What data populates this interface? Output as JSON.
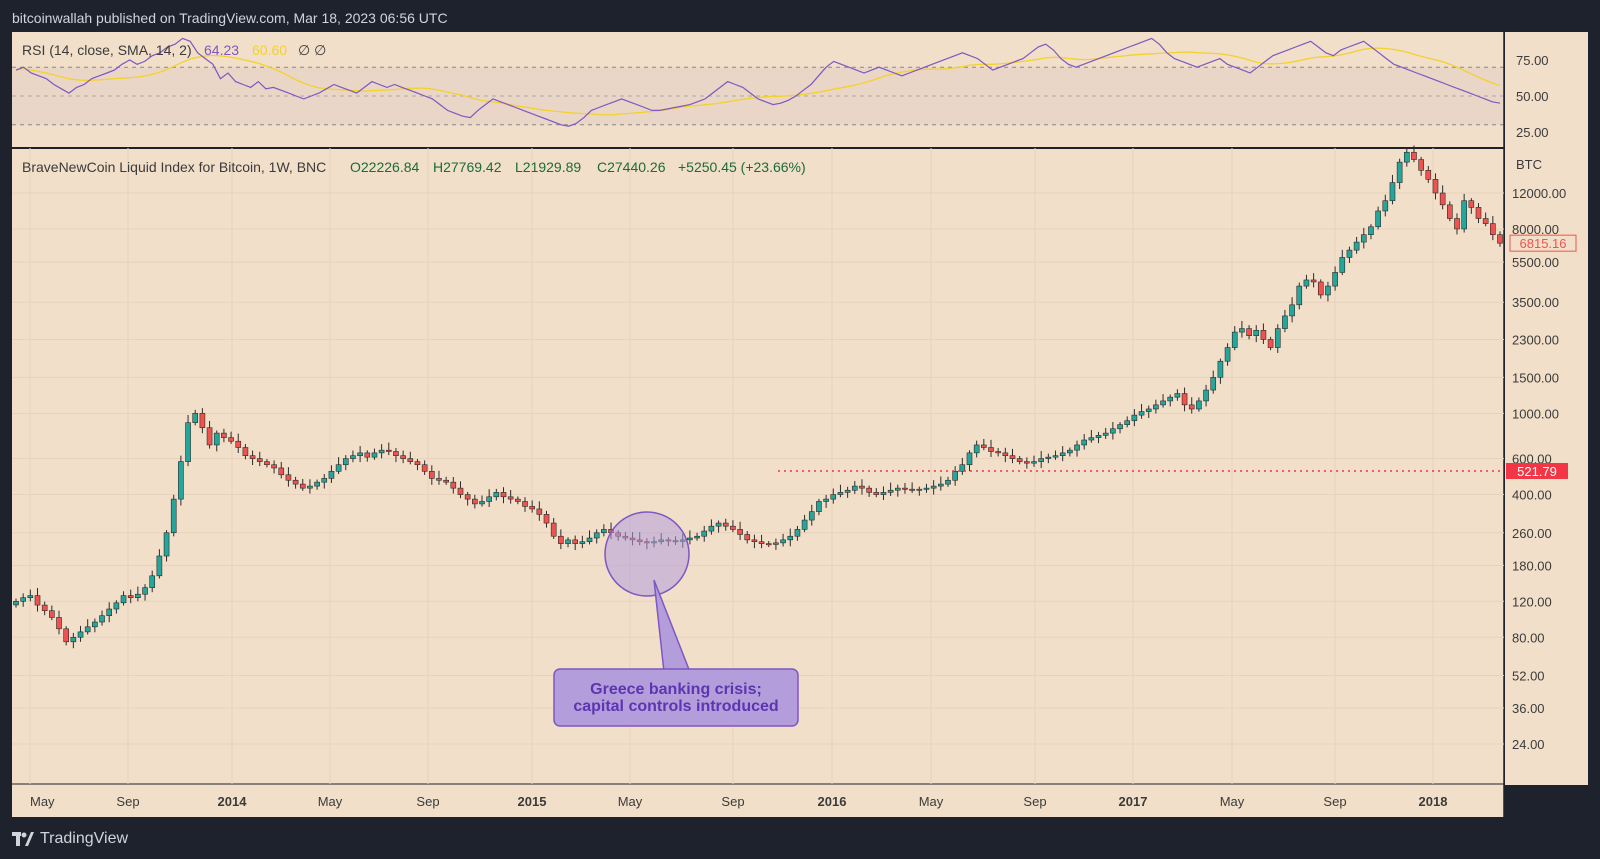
{
  "header": {
    "publisher_line": "bitcoinwallah published on TradingView.com, Mar 18, 2023 06:56 UTC"
  },
  "footer": {
    "brand": "TradingView"
  },
  "rsi_panel": {
    "label": "RSI (14, close, SMA, 14, 2)",
    "value_rsi": "64.23",
    "value_sma": "60.60",
    "extra_symbols": "∅ ∅",
    "axis_labels": [
      "75.00",
      "50.00",
      "25.00"
    ],
    "upper_band": 70,
    "mid_band": 50,
    "lower_band": 30
  },
  "main_panel": {
    "symbol_label": "BraveNewCoin Liquid Index for Bitcoin, 1W, BNC",
    "ohlc": {
      "open": "O22226.84",
      "high": "H27769.42",
      "low": "L21929.89",
      "close": "C27440.26",
      "change": "+5250.45 (+23.66%)"
    },
    "currency_label": "BTC",
    "last_price_tag": "6815.16",
    "level_tag": "521.79",
    "annotation": {
      "line1": "Greece banking crisis;",
      "line2": "capital controls introduced"
    }
  },
  "colors": {
    "background": "#f2dfc9",
    "up_candle": "#26a69a",
    "down_candle": "#ef5350",
    "rsi_line": "#7e57c2",
    "rsi_sma": "#f3d22b",
    "level_line": "#f23645",
    "annotation_fill": "#b39ddb"
  },
  "chart_data": {
    "type": "candlestick",
    "scale": "log",
    "ylabel": "BTC",
    "y_ticks": [
      "24.00",
      "36.00",
      "52.00",
      "80.00",
      "120.00",
      "180.00",
      "260.00",
      "400.00",
      "600.00",
      "1000.00",
      "1500.00",
      "2300.00",
      "3500.00",
      "5500.00",
      "8000.00",
      "12000.00"
    ],
    "x_ticks": [
      {
        "label": "May",
        "bold": false
      },
      {
        "label": "Sep",
        "bold": false
      },
      {
        "label": "2014",
        "bold": true
      },
      {
        "label": "May",
        "bold": false
      },
      {
        "label": "Sep",
        "bold": false
      },
      {
        "label": "2015",
        "bold": true
      },
      {
        "label": "May",
        "bold": false
      },
      {
        "label": "Sep",
        "bold": false
      },
      {
        "label": "2016",
        "bold": true
      },
      {
        "label": "May",
        "bold": false
      },
      {
        "label": "Sep",
        "bold": false
      },
      {
        "label": "2017",
        "bold": true
      },
      {
        "label": "May",
        "bold": false
      },
      {
        "label": "Sep",
        "bold": false
      },
      {
        "label": "2018",
        "bold": true
      }
    ],
    "horizontal_level": 521.79,
    "last_price": 6815.16,
    "series_closes": [
      120,
      125,
      128,
      115,
      108,
      100,
      88,
      76,
      80,
      85,
      90,
      95,
      102,
      110,
      118,
      128,
      125,
      130,
      140,
      160,
      200,
      260,
      380,
      580,
      900,
      1000,
      850,
      700,
      800,
      760,
      730,
      680,
      620,
      600,
      580,
      560,
      540,
      500,
      470,
      450,
      430,
      440,
      460,
      480,
      520,
      560,
      600,
      620,
      640,
      610,
      640,
      660,
      650,
      620,
      600,
      580,
      560,
      520,
      480,
      470,
      460,
      430,
      400,
      380,
      360,
      370,
      390,
      410,
      390,
      380,
      370,
      350,
      340,
      320,
      290,
      250,
      230,
      240,
      230,
      235,
      245,
      260,
      270,
      260,
      250,
      245,
      240,
      235,
      232,
      235,
      240,
      238,
      236,
      240,
      245,
      250,
      265,
      280,
      290,
      280,
      270,
      255,
      240,
      235,
      230,
      228,
      232,
      240,
      250,
      270,
      300,
      330,
      370,
      380,
      400,
      410,
      420,
      440,
      430,
      410,
      400,
      410,
      420,
      430,
      425,
      420,
      425,
      430,
      440,
      450,
      470,
      520,
      560,
      640,
      700,
      680,
      650,
      640,
      620,
      600,
      580,
      570,
      580,
      600,
      610,
      620,
      640,
      660,
      700,
      740,
      760,
      780,
      800,
      840,
      880,
      920,
      980,
      1020,
      1050,
      1100,
      1150,
      1200,
      1250,
      1100,
      1050,
      1150,
      1300,
      1500,
      1800,
      2100,
      2500,
      2600,
      2400,
      2550,
      2300,
      2100,
      2600,
      3000,
      3400,
      4200,
      4500,
      4400,
      3800,
      4200,
      4900,
      5800,
      6300,
      6900,
      7500,
      8200,
      9800,
      11000,
      13500,
      17000,
      19000,
      17500,
      15500,
      14000,
      12000,
      10500,
      9000,
      8000,
      11000,
      10200,
      9000,
      8500,
      7500,
      6815.16
    ],
    "rsi_values": [
      68,
      70,
      66,
      64,
      62,
      58,
      55,
      52,
      56,
      58,
      62,
      64,
      66,
      68,
      72,
      75,
      72,
      74,
      78,
      80,
      84,
      86,
      90,
      88,
      80,
      76,
      72,
      62,
      66,
      60,
      58,
      56,
      60,
      55,
      56,
      54,
      52,
      50,
      48,
      50,
      52,
      55,
      58,
      56,
      54,
      52,
      56,
      60,
      58,
      56,
      58,
      56,
      54,
      52,
      50,
      48,
      44,
      40,
      38,
      36,
      35,
      40,
      44,
      48,
      46,
      44,
      42,
      40,
      38,
      36,
      34,
      32,
      30,
      29,
      31,
      35,
      40,
      42,
      44,
      46,
      48,
      46,
      44,
      42,
      40,
      40,
      41,
      42,
      43,
      44,
      46,
      48,
      52,
      56,
      60,
      58,
      56,
      52,
      48,
      46,
      44,
      45,
      47,
      50,
      54,
      58,
      64,
      70,
      74,
      72,
      70,
      68,
      66,
      68,
      70,
      68,
      66,
      64,
      66,
      68,
      70,
      72,
      74,
      76,
      78,
      80,
      78,
      76,
      72,
      68,
      70,
      72,
      74,
      76,
      80,
      84,
      86,
      82,
      76,
      72,
      70,
      72,
      74,
      76,
      78,
      80,
      82,
      84,
      86,
      88,
      90,
      86,
      80,
      76,
      74,
      72,
      70,
      72,
      74,
      76,
      72,
      70,
      68,
      66,
      70,
      74,
      78,
      80,
      82,
      84,
      86,
      88,
      84,
      80,
      78,
      82,
      84,
      86,
      88,
      84,
      80,
      76,
      72,
      70,
      68,
      66,
      64,
      62,
      60,
      58,
      56,
      54,
      52,
      50,
      48,
      46,
      45
    ]
  }
}
